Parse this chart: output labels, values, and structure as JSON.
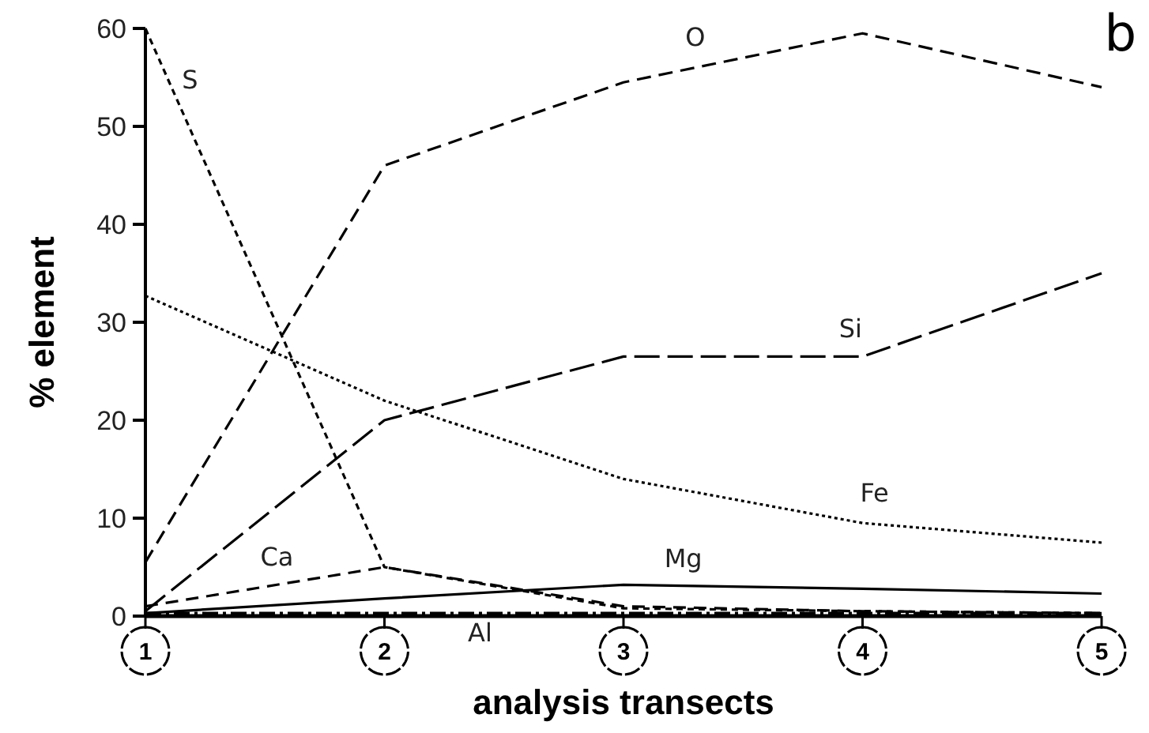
{
  "chart_data": {
    "type": "line",
    "xlabel": "analysis transects",
    "ylabel": "% element",
    "categories": [
      "1",
      "2",
      "3",
      "4",
      "5"
    ],
    "ylim": [
      0,
      60
    ],
    "yticks": [
      0,
      10,
      20,
      30,
      40,
      50,
      60
    ],
    "grid": false,
    "marker": "none",
    "annotations": [
      "b"
    ],
    "series": [
      {
        "name": "S",
        "color": "#000000",
        "line_style": "dashed",
        "values": [
          60,
          5,
          0.8,
          0.5,
          0.3
        ]
      },
      {
        "name": "O",
        "color": "#000000",
        "line_style": "dashed",
        "values": [
          5.5,
          46,
          54.5,
          59.5,
          54
        ]
      },
      {
        "name": "Si",
        "color": "#000000",
        "line_style": "dashed",
        "values": [
          0.5,
          20,
          26.5,
          26.5,
          35
        ]
      },
      {
        "name": "Fe",
        "color": "#000000",
        "line_style": "dotted",
        "values": [
          32.7,
          22,
          14,
          9.5,
          7.5
        ]
      },
      {
        "name": "Mg",
        "color": "#000000",
        "line_style": "solid",
        "values": [
          0.3,
          1.8,
          3.2,
          2.8,
          2.3
        ]
      },
      {
        "name": "Ca",
        "color": "#000000",
        "line_style": "dashed",
        "values": [
          1,
          5,
          1,
          0.5,
          0.3
        ]
      },
      {
        "name": "Al",
        "color": "#000000",
        "line_style": "dashed",
        "values": [
          0.2,
          0.2,
          0.2,
          0.2,
          0.2
        ]
      }
    ]
  }
}
